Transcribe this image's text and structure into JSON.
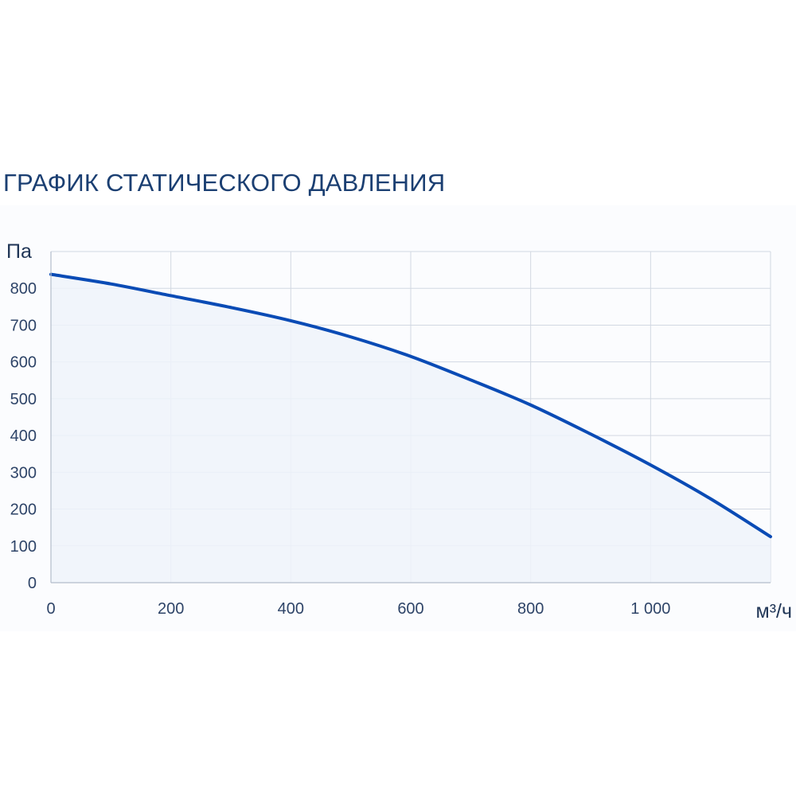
{
  "chart_data": {
    "type": "area",
    "title": "ГРАФИК СТАТИЧЕСКОГО ДАВЛЕНИЯ",
    "xlabel": "м³/ч",
    "ylabel": "Па",
    "xlim": [
      0,
      1200
    ],
    "ylim": [
      0,
      900
    ],
    "x_ticks": [
      {
        "value": 0,
        "label": "0"
      },
      {
        "value": 200,
        "label": "200"
      },
      {
        "value": 400,
        "label": "400"
      },
      {
        "value": 600,
        "label": "600"
      },
      {
        "value": 800,
        "label": "800"
      },
      {
        "value": 1000,
        "label": "1 000"
      }
    ],
    "y_ticks": [
      {
        "value": 0,
        "label": "0"
      },
      {
        "value": 100,
        "label": "100"
      },
      {
        "value": 200,
        "label": "200"
      },
      {
        "value": 300,
        "label": "300"
      },
      {
        "value": 400,
        "label": "400"
      },
      {
        "value": 500,
        "label": "500"
      },
      {
        "value": 600,
        "label": "600"
      },
      {
        "value": 700,
        "label": "700"
      },
      {
        "value": 800,
        "label": "800"
      }
    ],
    "grid": true,
    "series": [
      {
        "x": [
          0,
          100,
          200,
          300,
          400,
          500,
          600,
          700,
          800,
          900,
          1000,
          1100,
          1200
        ],
        "y": [
          838,
          812,
          780,
          748,
          712,
          668,
          615,
          551,
          483,
          404,
          320,
          228,
          125
        ]
      }
    ],
    "colors": {
      "line": "#0a4bb5",
      "fill": "#eef3fa",
      "grid": "#d2d8e2",
      "title": "#1b3f72"
    }
  }
}
